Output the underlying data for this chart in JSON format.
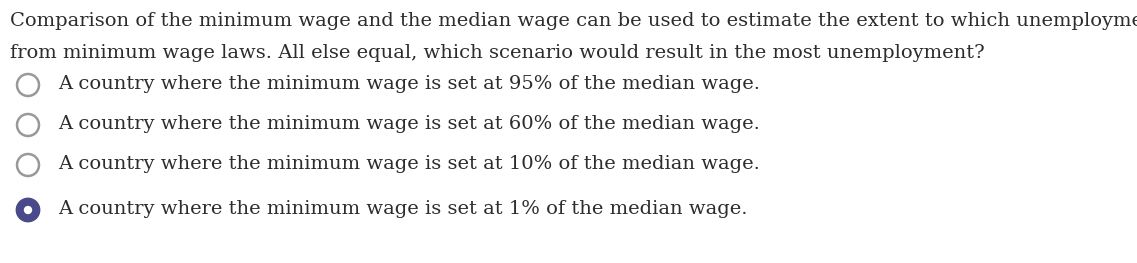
{
  "background_color": "#ffffff",
  "question_line1": "Comparison of the minimum wage and the median wage can be used to estimate the extent to which unemployment results",
  "question_line2": "from minimum wage laws. All else equal, which scenario would result in the most unemployment?",
  "options": [
    "A country where the minimum wage is set at 95% of the median wage.",
    "A country where the minimum wage is set at 60% of the median wage.",
    "A country where the minimum wage is set at 10% of the median wage.",
    "A country where the minimum wage is set at 1% of the median wage."
  ],
  "selected_index": 3,
  "text_color": "#2c2c2c",
  "circle_edge_color": "#999999",
  "selected_fill_color": "#4a4a8a",
  "selected_edge_color": "#4a4a8a",
  "unselected_fill_color": "#ffffff",
  "font_size": 14.0,
  "fig_width": 11.37,
  "fig_height": 2.63,
  "dpi": 100
}
